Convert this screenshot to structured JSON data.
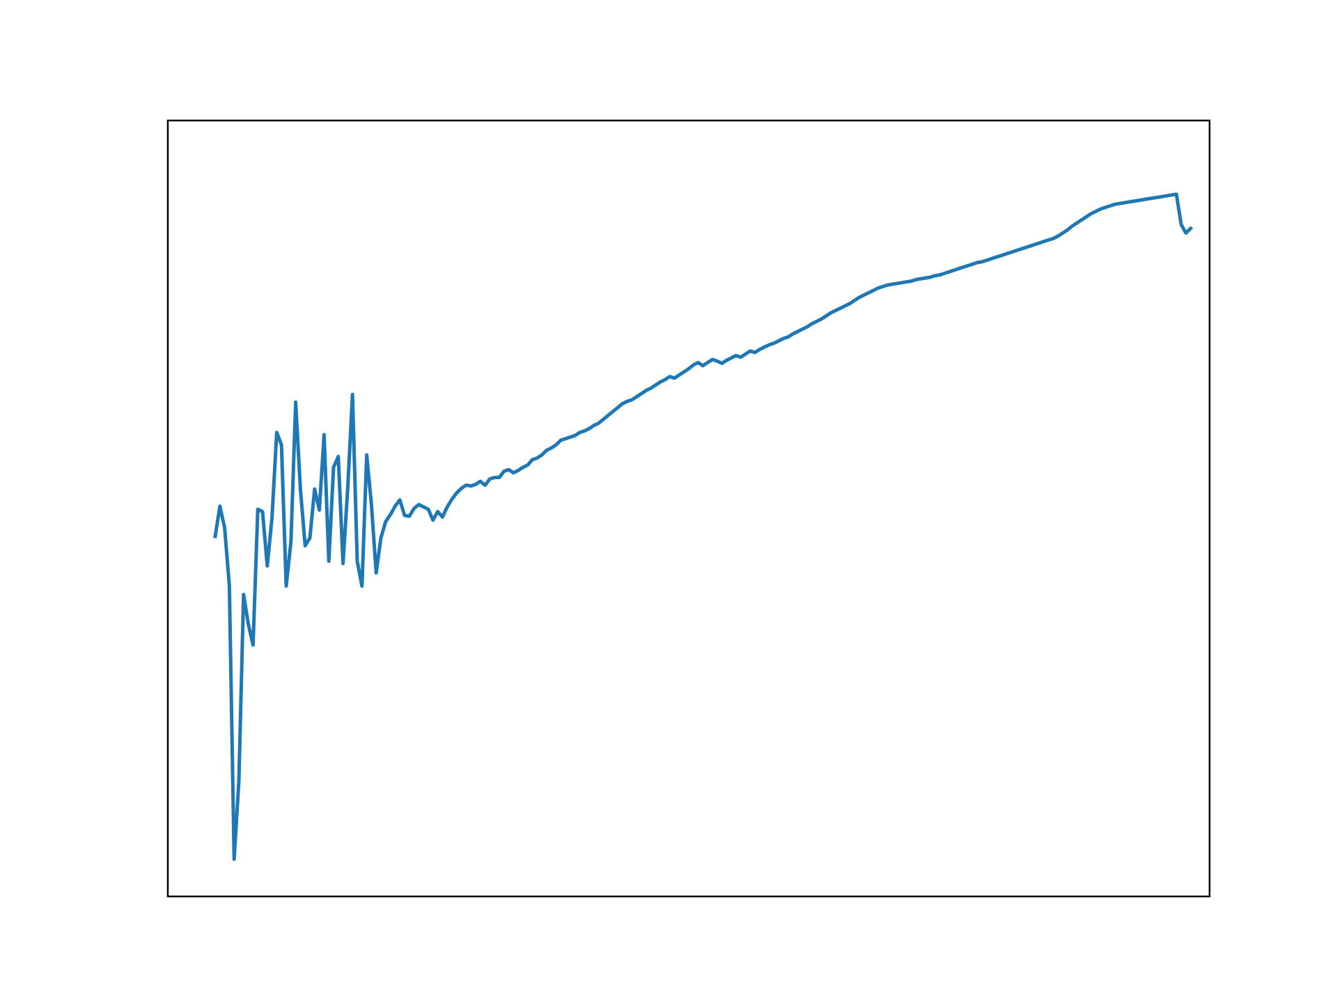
{
  "chart_data": {
    "type": "line",
    "title": "",
    "xlabel": "",
    "ylabel": "",
    "grid": false,
    "legend": "none",
    "color": "#1f77b4",
    "xlim": [
      -10,
      210
    ],
    "ylim": [
      0,
      1
    ],
    "series": [
      {
        "values": [
          0.464,
          0.503,
          0.475,
          0.4,
          0.048,
          0.148,
          0.389,
          0.351,
          0.324,
          0.499,
          0.496,
          0.426,
          0.488,
          0.598,
          0.582,
          0.4,
          0.457,
          0.637,
          0.525,
          0.452,
          0.462,
          0.525,
          0.498,
          0.595,
          0.432,
          0.553,
          0.567,
          0.429,
          0.527,
          0.647,
          0.432,
          0.4,
          0.569,
          0.505,
          0.417,
          0.462,
          0.483,
          0.492,
          0.503,
          0.511,
          0.491,
          0.49,
          0.5,
          0.505,
          0.502,
          0.499,
          0.485,
          0.496,
          0.489,
          0.502,
          0.512,
          0.52,
          0.526,
          0.53,
          0.529,
          0.531,
          0.535,
          0.53,
          0.538,
          0.54,
          0.54,
          0.548,
          0.55,
          0.546,
          0.549,
          0.553,
          0.556,
          0.563,
          0.565,
          0.569,
          0.575,
          0.578,
          0.582,
          0.588,
          0.59,
          0.592,
          0.594,
          0.598,
          0.6,
          0.603,
          0.607,
          0.61,
          0.615,
          0.62,
          0.625,
          0.63,
          0.635,
          0.638,
          0.64,
          0.644,
          0.648,
          0.652,
          0.655,
          0.659,
          0.663,
          0.666,
          0.67,
          0.668,
          0.672,
          0.676,
          0.68,
          0.685,
          0.688,
          0.684,
          0.688,
          0.692,
          0.69,
          0.687,
          0.691,
          0.694,
          0.697,
          0.695,
          0.699,
          0.703,
          0.701,
          0.705,
          0.708,
          0.711,
          0.713,
          0.716,
          0.719,
          0.721,
          0.725,
          0.728,
          0.731,
          0.734,
          0.738,
          0.741,
          0.744,
          0.748,
          0.752,
          0.755,
          0.758,
          0.761,
          0.764,
          0.768,
          0.772,
          0.775,
          0.778,
          0.781,
          0.784,
          0.786,
          0.788,
          0.789,
          0.79,
          0.791,
          0.792,
          0.793,
          0.795,
          0.796,
          0.797,
          0.798,
          0.8,
          0.801,
          0.803,
          0.805,
          0.807,
          0.809,
          0.811,
          0.813,
          0.815,
          0.817,
          0.818,
          0.82,
          0.822,
          0.824,
          0.826,
          0.828,
          0.83,
          0.832,
          0.834,
          0.836,
          0.838,
          0.84,
          0.842,
          0.844,
          0.846,
          0.848,
          0.851,
          0.855,
          0.859,
          0.864,
          0.868,
          0.872,
          0.876,
          0.88,
          0.883,
          0.886,
          0.888,
          0.89,
          0.892,
          0.893,
          0.894,
          0.895,
          0.896,
          0.897,
          0.898,
          0.899,
          0.9,
          0.901,
          0.902,
          0.903,
          0.904,
          0.905,
          0.866,
          0.855,
          0.861
        ]
      }
    ]
  }
}
